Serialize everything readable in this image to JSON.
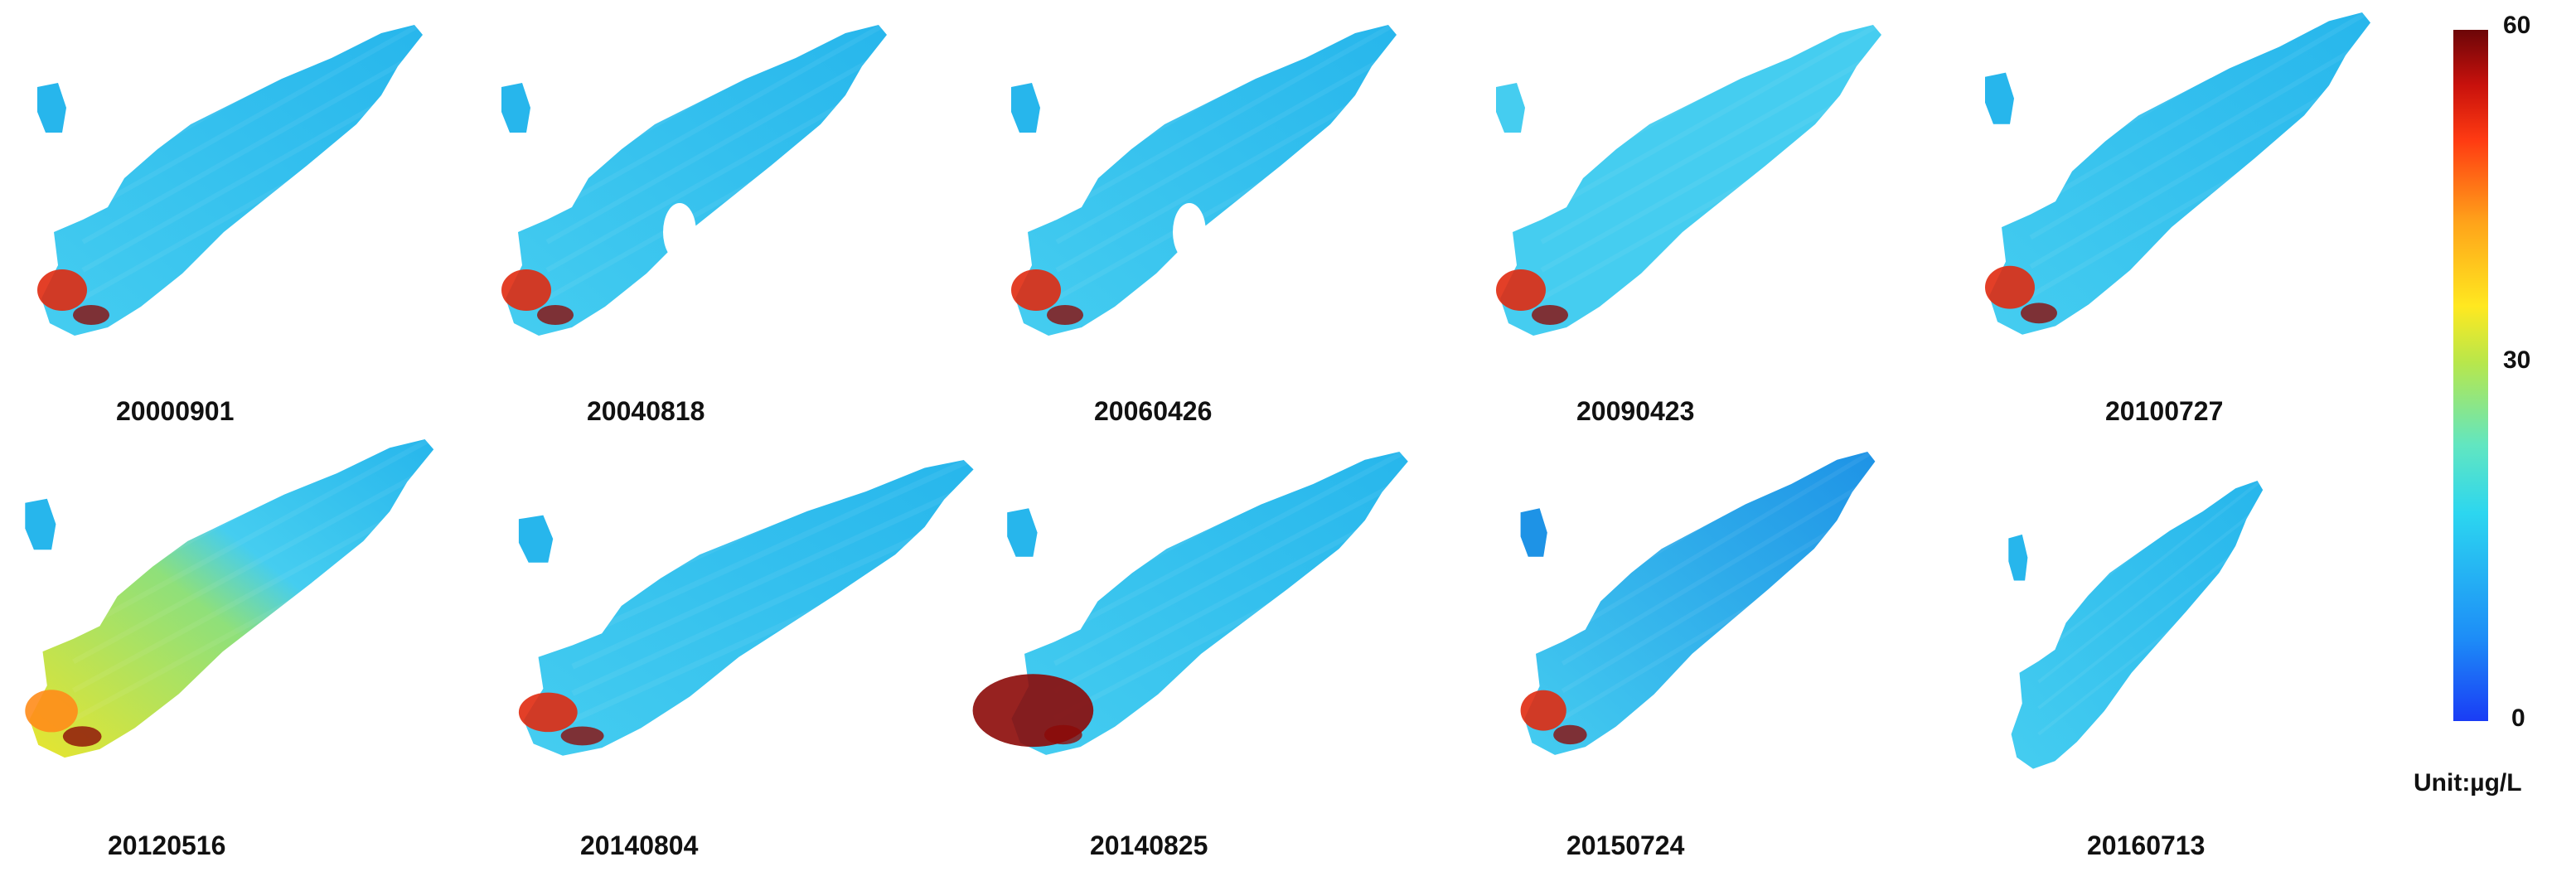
{
  "panels": [
    {
      "date": "20000901",
      "style": "normal"
    },
    {
      "date": "20040818",
      "style": "gaps"
    },
    {
      "date": "20060426",
      "style": "gaps"
    },
    {
      "date": "20090423",
      "style": "light"
    },
    {
      "date": "20100727",
      "style": "normal"
    },
    {
      "date": "20120516",
      "style": "bloom"
    },
    {
      "date": "20140804",
      "style": "normal"
    },
    {
      "date": "20140825",
      "style": "heavy"
    },
    {
      "date": "20150724",
      "style": "dark"
    },
    {
      "date": "20160713",
      "style": "sparse"
    }
  ],
  "colorbar": {
    "max_label": "60",
    "mid_label": "30",
    "min_label": "0",
    "unit": "Unit:µg/L"
  },
  "colors": {
    "lake_base": "#27b6ec",
    "lake_light": "#45cdf0",
    "lake_dark": "#1e93e6",
    "bloom_green": "#8fe07a",
    "bloom_yellow": "#e8e52e",
    "bloom_orange": "#ff8c1a",
    "bloom_red": "#e02a10",
    "bloom_darkred": "#8c0a08"
  }
}
